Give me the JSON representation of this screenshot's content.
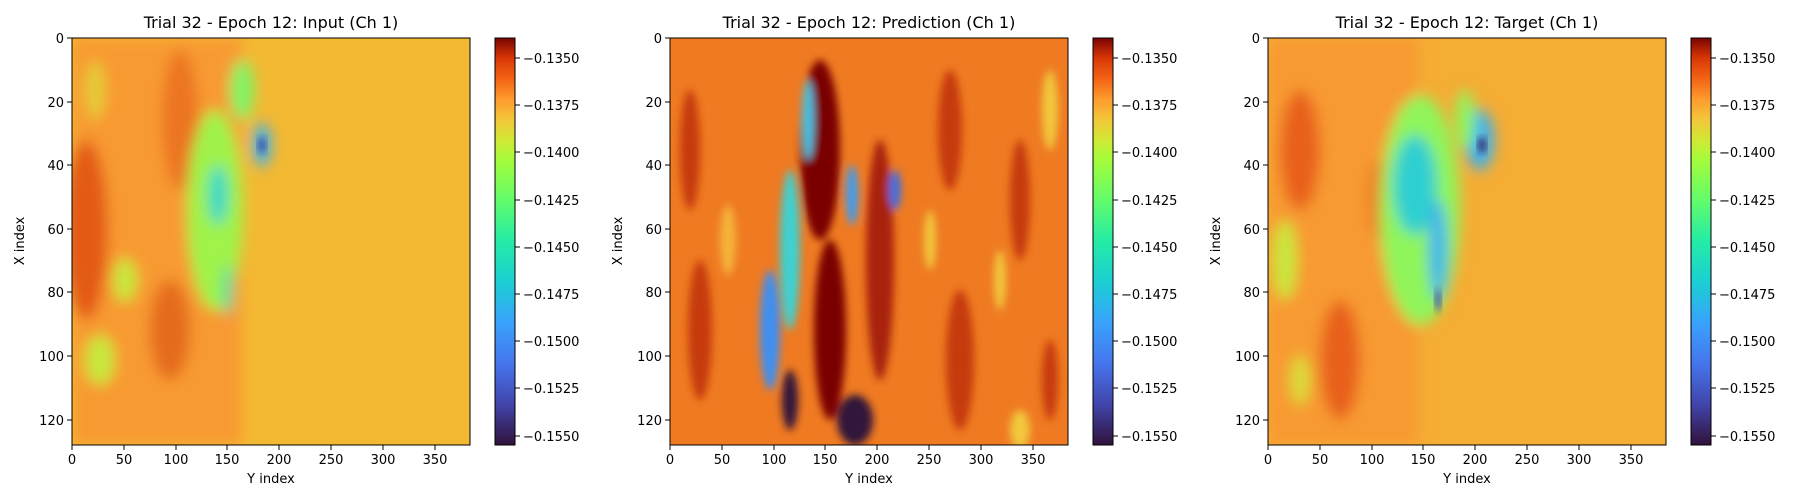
{
  "chart_data": [
    {
      "type": "heatmap",
      "title": "Trial 32 - Epoch 12: Input (Ch 1)",
      "xlabel": "Y index",
      "ylabel": "X index",
      "xlim": [
        0,
        384
      ],
      "ylim": [
        128,
        0
      ],
      "xticks": [
        "0",
        "50",
        "100",
        "150",
        "200",
        "250",
        "300",
        "350"
      ],
      "yticks": [
        "0",
        "20",
        "40",
        "60",
        "80",
        "100",
        "120"
      ],
      "colorbar": {
        "colormap": "turbo",
        "range": [
          -0.1556,
          -0.134
        ],
        "ticks": [
          "−0.1350",
          "−0.1375",
          "−0.1400",
          "−0.1425",
          "−0.1450",
          "−0.1475",
          "−0.1500",
          "−0.1525",
          "−0.1550"
        ]
      }
    },
    {
      "type": "heatmap",
      "title": "Trial 32 - Epoch 12: Prediction (Ch 1)",
      "xlabel": "Y index",
      "ylabel": "X index",
      "xlim": [
        0,
        384
      ],
      "ylim": [
        128,
        0
      ],
      "xticks": [
        "0",
        "50",
        "100",
        "150",
        "200",
        "250",
        "300",
        "350"
      ],
      "yticks": [
        "0",
        "20",
        "40",
        "60",
        "80",
        "100",
        "120"
      ],
      "colorbar": {
        "colormap": "turbo",
        "range": [
          -0.1556,
          -0.134
        ],
        "ticks": [
          "−0.1350",
          "−0.1375",
          "−0.1400",
          "−0.1425",
          "−0.1450",
          "−0.1475",
          "−0.1500",
          "−0.1525",
          "−0.1550"
        ]
      }
    },
    {
      "type": "heatmap",
      "title": "Trial 32 - Epoch 12: Target (Ch 1)",
      "xlabel": "Y index",
      "ylabel": "X index",
      "xlim": [
        0,
        384
      ],
      "ylim": [
        128,
        0
      ],
      "xticks": [
        "0",
        "50",
        "100",
        "150",
        "200",
        "250",
        "300",
        "350"
      ],
      "yticks": [
        "0",
        "20",
        "40",
        "60",
        "80",
        "100",
        "120"
      ],
      "colorbar": {
        "colormap": "turbo",
        "range": [
          -0.1556,
          -0.134
        ],
        "ticks": [
          "−0.1350",
          "−0.1375",
          "−0.1400",
          "−0.1425",
          "−0.1450",
          "−0.1475",
          "−0.1500",
          "−0.1525",
          "−0.1550"
        ]
      }
    }
  ]
}
